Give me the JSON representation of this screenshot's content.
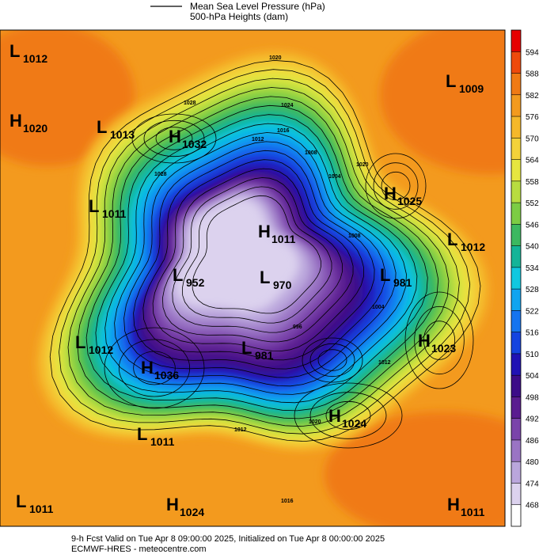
{
  "legend": {
    "mslp": "Mean Sea Level Pressure (hPa)",
    "heights": "500-hPa Heights (dam)"
  },
  "colorbar": {
    "ticks": [
      594,
      588,
      582,
      576,
      570,
      564,
      558,
      552,
      546,
      540,
      534,
      528,
      522,
      516,
      510,
      504,
      498,
      492,
      486,
      480,
      474,
      468
    ],
    "colors": [
      "#e60000",
      "#ee4a0c",
      "#f07a14",
      "#f39a1e",
      "#f5b82a",
      "#f3d23a",
      "#e6e640",
      "#b8dc40",
      "#7ccc44",
      "#3cb860",
      "#14b498",
      "#10c8e0",
      "#10a4f0",
      "#1474f0",
      "#1444e0",
      "#2012b4",
      "#3c0c88",
      "#5a1c90",
      "#7a44aa",
      "#9a74c4",
      "#baa6dc",
      "#dcd2ee",
      "#ffffff"
    ]
  },
  "centers": [
    {
      "kind": "L",
      "value": 1012
    },
    {
      "kind": "H",
      "value": 1020
    },
    {
      "kind": "L",
      "value": 1013
    },
    {
      "kind": "H",
      "value": 1032
    },
    {
      "kind": "L",
      "value": 1009
    },
    {
      "kind": "H",
      "value": 1025
    },
    {
      "kind": "L",
      "value": 1011
    },
    {
      "kind": "L",
      "value": 1012
    },
    {
      "kind": "L",
      "value": 952
    },
    {
      "kind": "H",
      "value": 1011
    },
    {
      "kind": "L",
      "value": 970
    },
    {
      "kind": "L",
      "value": 981
    },
    {
      "kind": "L",
      "value": 1012
    },
    {
      "kind": "H",
      "value": 1023
    },
    {
      "kind": "H",
      "value": 1036
    },
    {
      "kind": "L",
      "value": 981
    },
    {
      "kind": "H",
      "value": 1024
    },
    {
      "kind": "L",
      "value": 1011
    },
    {
      "kind": "L",
      "value": 1011
    },
    {
      "kind": "H",
      "value": 1024
    },
    {
      "kind": "H",
      "value": 1011
    }
  ],
  "contour_labels": [
    1020,
    1028,
    1024,
    1016,
    1012,
    1008,
    1004,
    1028,
    1020,
    1008,
    1004,
    996,
    1012,
    1020,
    1016,
    1012
  ],
  "footer": {
    "valid": "9-h Fcst Valid on Tue Apr  8 09:00:00 2025, Initialized on Tue Apr  8 00:00:00 2025",
    "source": "ECMWF-HRES  - meteocentre.com"
  }
}
